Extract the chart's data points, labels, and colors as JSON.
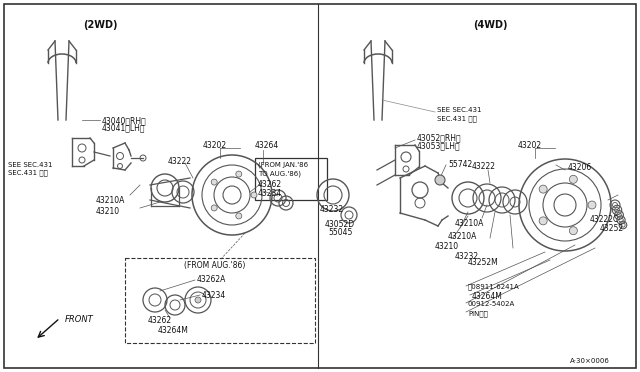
{
  "bg_color": "#ffffff",
  "fig_note": "A·30×0006",
  "section_2wd": "(2WD)",
  "section_4wd": "(4WD)",
  "lc": "#555555",
  "tc": "#111111",
  "fs": 5.5
}
